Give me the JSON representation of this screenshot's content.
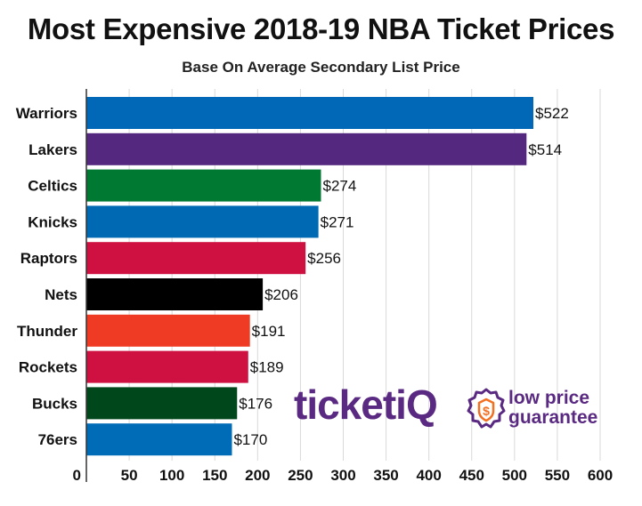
{
  "chart_data": {
    "type": "bar",
    "orientation": "horizontal",
    "title": "Most Expensive 2018-19 NBA Ticket Prices",
    "subtitle": "Base On Average Secondary List Price",
    "categories": [
      "Warriors",
      "Lakers",
      "Celtics",
      "Knicks",
      "Raptors",
      "Nets",
      "Thunder",
      "Rockets",
      "Bucks",
      "76ers"
    ],
    "values": [
      522,
      514,
      274,
      271,
      256,
      206,
      191,
      189,
      176,
      170
    ],
    "value_labels": [
      "$522",
      "$514",
      "$274",
      "$271",
      "$256",
      "$206",
      "$191",
      "$189",
      "$176",
      "$170"
    ],
    "colors": [
      "#0068b7",
      "#55287f",
      "#007a33",
      "#0069b4",
      "#ce1141",
      "#000000",
      "#ef3b24",
      "#ce1141",
      "#00471b",
      "#006bb6"
    ],
    "xlim": [
      0,
      600
    ],
    "x_ticks": [
      "0",
      "50",
      "100",
      "150",
      "200",
      "250",
      "300",
      "350",
      "400",
      "450",
      "500",
      "550",
      "600"
    ],
    "grid": true
  },
  "branding": {
    "logo_text": "ticketiQ",
    "tagline_line1": "low price",
    "tagline_line2": "guarantee",
    "brand_color": "#5a2a82",
    "icon": "dollar-badge-icon"
  }
}
